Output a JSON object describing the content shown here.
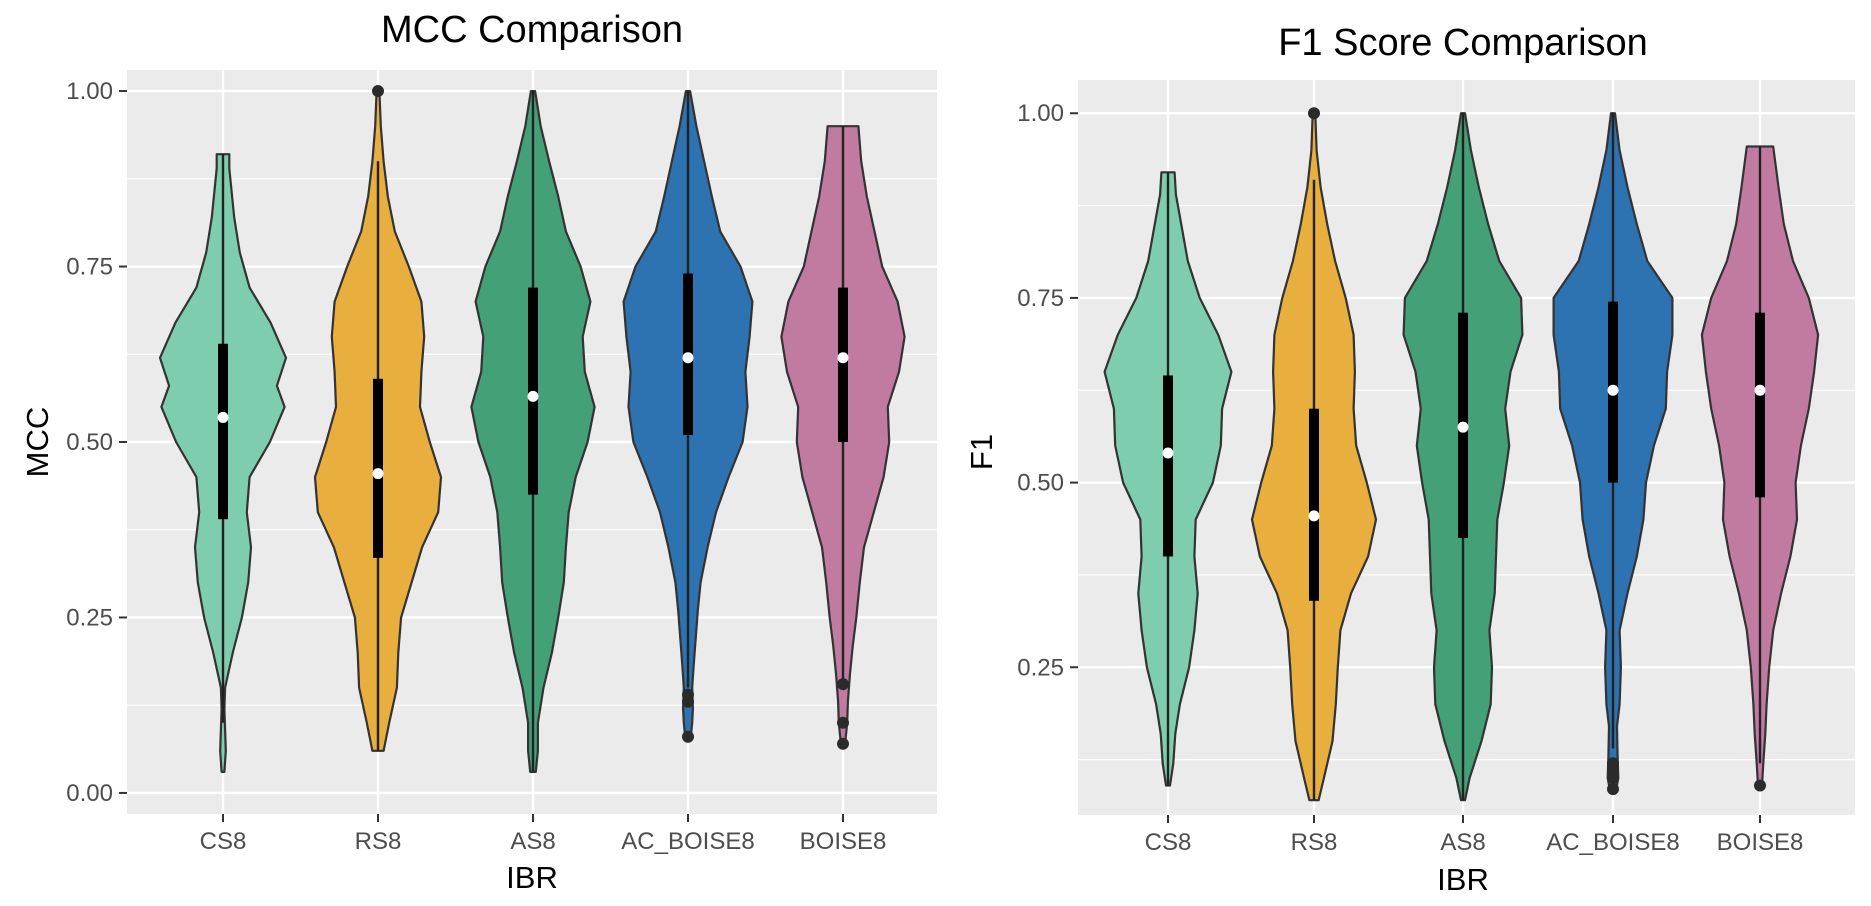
{
  "chart_data": [
    {
      "type": "violin",
      "title": "MCC Comparison",
      "xlabel": "IBR",
      "ylabel": "MCC",
      "categories": [
        "CS8",
        "RS8",
        "AS8",
        "AC_BOISE8",
        "BOISE8"
      ],
      "ylim": [
        -0.03,
        1.03
      ],
      "yticks": [
        0.0,
        0.25,
        0.5,
        0.75,
        1.0
      ],
      "ytick_labels": [
        "0.00",
        "0.25",
        "0.50",
        "0.75",
        "1.00"
      ],
      "grid": true,
      "legend": "none",
      "series": [
        {
          "category": "CS8",
          "color": "#7fcdaf",
          "min": 0.03,
          "max": 0.91,
          "q1": 0.39,
          "median": 0.535,
          "q3": 0.64,
          "whisker_low": 0.1,
          "whisker_high": 0.91,
          "outliers": [],
          "density": [
            [
              0.03,
              0.02
            ],
            [
              0.06,
              0.04
            ],
            [
              0.09,
              0.03
            ],
            [
              0.12,
              0.02
            ],
            [
              0.15,
              0.03
            ],
            [
              0.2,
              0.14
            ],
            [
              0.25,
              0.27
            ],
            [
              0.3,
              0.36
            ],
            [
              0.35,
              0.4
            ],
            [
              0.4,
              0.34
            ],
            [
              0.45,
              0.38
            ],
            [
              0.5,
              0.67
            ],
            [
              0.55,
              0.88
            ],
            [
              0.58,
              0.77
            ],
            [
              0.62,
              0.9
            ],
            [
              0.67,
              0.68
            ],
            [
              0.72,
              0.38
            ],
            [
              0.77,
              0.24
            ],
            [
              0.82,
              0.16
            ],
            [
              0.86,
              0.12
            ],
            [
              0.89,
              0.09
            ],
            [
              0.91,
              0.09
            ]
          ]
        },
        {
          "category": "RS8",
          "color": "#e8ae3e",
          "min": 0.06,
          "max": 1.0,
          "q1": 0.335,
          "median": 0.455,
          "q3": 0.59,
          "whisker_low": 0.06,
          "whisker_high": 0.9,
          "outliers": [
            1.0
          ],
          "density": [
            [
              0.06,
              0.08
            ],
            [
              0.1,
              0.16
            ],
            [
              0.15,
              0.27
            ],
            [
              0.2,
              0.29
            ],
            [
              0.25,
              0.33
            ],
            [
              0.3,
              0.48
            ],
            [
              0.35,
              0.63
            ],
            [
              0.4,
              0.86
            ],
            [
              0.45,
              0.9
            ],
            [
              0.5,
              0.74
            ],
            [
              0.55,
              0.6
            ],
            [
              0.6,
              0.62
            ],
            [
              0.65,
              0.66
            ],
            [
              0.7,
              0.62
            ],
            [
              0.75,
              0.44
            ],
            [
              0.8,
              0.24
            ],
            [
              0.85,
              0.14
            ],
            [
              0.9,
              0.08
            ],
            [
              0.95,
              0.04
            ],
            [
              1.0,
              0.02
            ]
          ]
        },
        {
          "category": "AS8",
          "color": "#43a077",
          "min": 0.03,
          "max": 1.0,
          "q1": 0.425,
          "median": 0.565,
          "q3": 0.72,
          "whisker_low": 0.03,
          "whisker_high": 1.0,
          "outliers": [],
          "density": [
            [
              0.03,
              0.04
            ],
            [
              0.06,
              0.07
            ],
            [
              0.1,
              0.07
            ],
            [
              0.15,
              0.15
            ],
            [
              0.2,
              0.27
            ],
            [
              0.25,
              0.36
            ],
            [
              0.3,
              0.44
            ],
            [
              0.35,
              0.47
            ],
            [
              0.4,
              0.51
            ],
            [
              0.45,
              0.61
            ],
            [
              0.5,
              0.78
            ],
            [
              0.55,
              0.88
            ],
            [
              0.6,
              0.74
            ],
            [
              0.65,
              0.71
            ],
            [
              0.7,
              0.82
            ],
            [
              0.75,
              0.68
            ],
            [
              0.8,
              0.47
            ],
            [
              0.85,
              0.36
            ],
            [
              0.9,
              0.23
            ],
            [
              0.95,
              0.11
            ],
            [
              1.0,
              0.03
            ]
          ]
        },
        {
          "category": "AC_BOISE8",
          "color": "#2d72b1",
          "min": 0.08,
          "max": 1.0,
          "q1": 0.51,
          "median": 0.62,
          "q3": 0.74,
          "whisker_low": 0.15,
          "whisker_high": 1.0,
          "outliers": [
            0.08,
            0.13,
            0.14
          ],
          "density": [
            [
              0.08,
              0.04
            ],
            [
              0.1,
              0.06
            ],
            [
              0.12,
              0.07
            ],
            [
              0.15,
              0.06
            ],
            [
              0.18,
              0.08
            ],
            [
              0.22,
              0.11
            ],
            [
              0.26,
              0.14
            ],
            [
              0.3,
              0.18
            ],
            [
              0.35,
              0.28
            ],
            [
              0.4,
              0.4
            ],
            [
              0.45,
              0.58
            ],
            [
              0.5,
              0.78
            ],
            [
              0.55,
              0.85
            ],
            [
              0.6,
              0.82
            ],
            [
              0.65,
              0.88
            ],
            [
              0.7,
              0.92
            ],
            [
              0.75,
              0.75
            ],
            [
              0.8,
              0.46
            ],
            [
              0.85,
              0.34
            ],
            [
              0.9,
              0.23
            ],
            [
              0.95,
              0.12
            ],
            [
              1.0,
              0.03
            ]
          ]
        },
        {
          "category": "BOISE8",
          "color": "#c27ba0",
          "min": 0.07,
          "max": 0.95,
          "q1": 0.5,
          "median": 0.62,
          "q3": 0.72,
          "whisker_low": 0.16,
          "whisker_high": 0.95,
          "outliers": [
            0.07,
            0.1,
            0.155
          ],
          "density": [
            [
              0.07,
              0.03
            ],
            [
              0.1,
              0.06
            ],
            [
              0.13,
              0.07
            ],
            [
              0.17,
              0.1
            ],
            [
              0.21,
              0.14
            ],
            [
              0.25,
              0.19
            ],
            [
              0.3,
              0.24
            ],
            [
              0.35,
              0.3
            ],
            [
              0.4,
              0.44
            ],
            [
              0.45,
              0.58
            ],
            [
              0.5,
              0.66
            ],
            [
              0.55,
              0.64
            ],
            [
              0.6,
              0.8
            ],
            [
              0.65,
              0.88
            ],
            [
              0.7,
              0.78
            ],
            [
              0.75,
              0.56
            ],
            [
              0.8,
              0.45
            ],
            [
              0.85,
              0.34
            ],
            [
              0.9,
              0.26
            ],
            [
              0.95,
              0.22
            ]
          ]
        }
      ]
    },
    {
      "type": "violin",
      "title": "F1 Score Comparison",
      "xlabel": "IBR",
      "ylabel": "F1",
      "categories": [
        "CS8",
        "RS8",
        "AS8",
        "AC_BOISE8",
        "BOISE8"
      ],
      "ylim": [
        0.05,
        1.045
      ],
      "yticks": [
        0.25,
        0.5,
        0.75,
        1.0
      ],
      "ytick_labels": [
        "0.25",
        "0.50",
        "0.75",
        "1.00"
      ],
      "grid": true,
      "legend": "none",
      "series": [
        {
          "category": "CS8",
          "color": "#7fcdaf",
          "min": 0.09,
          "max": 0.92,
          "q1": 0.4,
          "median": 0.54,
          "q3": 0.645,
          "whisker_low": 0.09,
          "whisker_high": 0.92,
          "outliers": [],
          "density": [
            [
              0.09,
              0.03
            ],
            [
              0.12,
              0.08
            ],
            [
              0.16,
              0.11
            ],
            [
              0.2,
              0.18
            ],
            [
              0.25,
              0.32
            ],
            [
              0.3,
              0.4
            ],
            [
              0.35,
              0.45
            ],
            [
              0.4,
              0.4
            ],
            [
              0.45,
              0.42
            ],
            [
              0.5,
              0.68
            ],
            [
              0.55,
              0.8
            ],
            [
              0.6,
              0.82
            ],
            [
              0.65,
              0.96
            ],
            [
              0.7,
              0.76
            ],
            [
              0.75,
              0.48
            ],
            [
              0.8,
              0.3
            ],
            [
              0.85,
              0.2
            ],
            [
              0.89,
              0.12
            ],
            [
              0.92,
              0.1
            ]
          ]
        },
        {
          "category": "RS8",
          "color": "#e8ae3e",
          "min": 0.07,
          "max": 1.0,
          "q1": 0.34,
          "median": 0.455,
          "q3": 0.6,
          "whisker_low": 0.07,
          "whisker_high": 0.91,
          "outliers": [
            1.0
          ],
          "density": [
            [
              0.07,
              0.07
            ],
            [
              0.1,
              0.15
            ],
            [
              0.15,
              0.28
            ],
            [
              0.2,
              0.33
            ],
            [
              0.25,
              0.36
            ],
            [
              0.3,
              0.4
            ],
            [
              0.35,
              0.56
            ],
            [
              0.4,
              0.82
            ],
            [
              0.45,
              0.94
            ],
            [
              0.5,
              0.8
            ],
            [
              0.55,
              0.64
            ],
            [
              0.6,
              0.6
            ],
            [
              0.65,
              0.62
            ],
            [
              0.7,
              0.6
            ],
            [
              0.75,
              0.48
            ],
            [
              0.8,
              0.32
            ],
            [
              0.85,
              0.2
            ],
            [
              0.9,
              0.1
            ],
            [
              0.95,
              0.04
            ],
            [
              1.0,
              0.02
            ]
          ]
        },
        {
          "category": "AS8",
          "color": "#43a077",
          "min": 0.07,
          "max": 1.0,
          "q1": 0.425,
          "median": 0.575,
          "q3": 0.73,
          "whisker_low": 0.07,
          "whisker_high": 1.0,
          "outliers": [],
          "density": [
            [
              0.07,
              0.03
            ],
            [
              0.1,
              0.1
            ],
            [
              0.15,
              0.28
            ],
            [
              0.2,
              0.42
            ],
            [
              0.25,
              0.44
            ],
            [
              0.3,
              0.4
            ],
            [
              0.35,
              0.48
            ],
            [
              0.4,
              0.5
            ],
            [
              0.45,
              0.52
            ],
            [
              0.5,
              0.62
            ],
            [
              0.55,
              0.7
            ],
            [
              0.6,
              0.64
            ],
            [
              0.65,
              0.72
            ],
            [
              0.7,
              0.9
            ],
            [
              0.75,
              0.88
            ],
            [
              0.8,
              0.55
            ],
            [
              0.85,
              0.38
            ],
            [
              0.9,
              0.24
            ],
            [
              0.95,
              0.12
            ],
            [
              1.0,
              0.03
            ]
          ]
        },
        {
          "category": "AC_BOISE8",
          "color": "#2d72b1",
          "min": 0.08,
          "max": 1.0,
          "q1": 0.5,
          "median": 0.625,
          "q3": 0.745,
          "whisker_low": 0.14,
          "whisker_high": 1.0,
          "outliers": [
            0.085,
            0.1,
            0.11,
            0.12
          ],
          "density": [
            [
              0.08,
              0.04
            ],
            [
              0.1,
              0.08
            ],
            [
              0.13,
              0.07
            ],
            [
              0.17,
              0.06
            ],
            [
              0.2,
              0.1
            ],
            [
              0.25,
              0.12
            ],
            [
              0.3,
              0.1
            ],
            [
              0.35,
              0.22
            ],
            [
              0.4,
              0.36
            ],
            [
              0.45,
              0.46
            ],
            [
              0.5,
              0.5
            ],
            [
              0.55,
              0.62
            ],
            [
              0.6,
              0.8
            ],
            [
              0.65,
              0.82
            ],
            [
              0.7,
              0.9
            ],
            [
              0.75,
              0.9
            ],
            [
              0.8,
              0.52
            ],
            [
              0.85,
              0.36
            ],
            [
              0.9,
              0.22
            ],
            [
              0.95,
              0.1
            ],
            [
              1.0,
              0.03
            ]
          ]
        },
        {
          "category": "BOISE8",
          "color": "#c27ba0",
          "min": 0.09,
          "max": 0.955,
          "q1": 0.48,
          "median": 0.625,
          "q3": 0.73,
          "whisker_low": 0.12,
          "whisker_high": 0.955,
          "outliers": [
            0.09
          ],
          "density": [
            [
              0.09,
              0.03
            ],
            [
              0.12,
              0.05
            ],
            [
              0.16,
              0.08
            ],
            [
              0.2,
              0.1
            ],
            [
              0.25,
              0.14
            ],
            [
              0.3,
              0.2
            ],
            [
              0.35,
              0.32
            ],
            [
              0.4,
              0.46
            ],
            [
              0.45,
              0.56
            ],
            [
              0.5,
              0.54
            ],
            [
              0.55,
              0.62
            ],
            [
              0.6,
              0.74
            ],
            [
              0.65,
              0.82
            ],
            [
              0.7,
              0.88
            ],
            [
              0.75,
              0.74
            ],
            [
              0.8,
              0.5
            ],
            [
              0.85,
              0.36
            ],
            [
              0.9,
              0.28
            ],
            [
              0.955,
              0.2
            ]
          ]
        }
      ]
    }
  ]
}
